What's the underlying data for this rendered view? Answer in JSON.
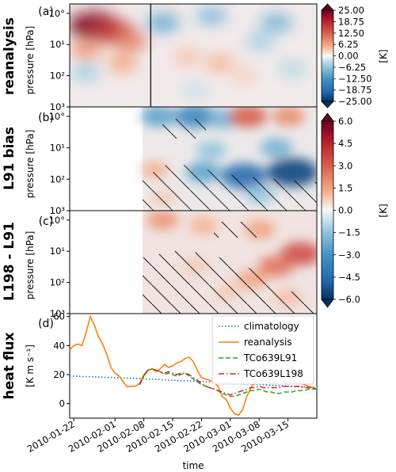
{
  "chart_data": [
    {
      "type": "heatmap",
      "panel_label": "(a)",
      "row_label": "reanalysis",
      "ylabel": "pressure [hPa]",
      "y_scale": "log",
      "ylim_hpa": [
        1000,
        0.5
      ],
      "y_ticks": [
        "10°",
        "10¹",
        "10²",
        "10³"
      ],
      "xlim": [
        "2010-01-20",
        "2010-03-22"
      ],
      "marker_line_date": "2010-02-09",
      "colorbar": {
        "unit": "[K]",
        "ticks": [
          "25.00",
          "18.75",
          "12.50",
          "6.25",
          "0.00",
          "−6.25",
          "−12.50",
          "−18.75",
          "−25.00"
        ],
        "range": [
          -25,
          25
        ],
        "colormap": "RdBu_r"
      },
      "blobs": [
        {
          "date": "2010-01-26",
          "p": 2.5,
          "value": 23
        },
        {
          "date": "2010-01-31",
          "p": 4,
          "value": 16
        },
        {
          "date": "2010-02-04",
          "p": 8,
          "value": 9
        },
        {
          "date": "2010-01-24",
          "p": 15,
          "value": 7
        },
        {
          "date": "2010-02-02",
          "p": 40,
          "value": 6
        },
        {
          "date": "2010-01-24",
          "p": 80,
          "value": -5
        },
        {
          "date": "2010-02-12",
          "p": 2,
          "value": -9
        },
        {
          "date": "2010-02-24",
          "p": 1.2,
          "value": -7
        },
        {
          "date": "2010-03-12",
          "p": 2,
          "value": -8
        },
        {
          "date": "2010-03-08",
          "p": 8,
          "value": -5
        },
        {
          "date": "2010-02-26",
          "p": 40,
          "value": 5
        },
        {
          "date": "2010-02-18",
          "p": 25,
          "value": 4
        },
        {
          "date": "2010-03-04",
          "p": 100,
          "value": 3
        },
        {
          "date": "2010-03-16",
          "p": 60,
          "value": -4
        },
        {
          "date": "2010-02-20",
          "p": 300,
          "value": -3
        }
      ]
    },
    {
      "type": "heatmap",
      "panel_label": "(b)",
      "row_label": "L91 bias",
      "ylabel": "pressure [hPa]",
      "y_scale": "log",
      "ylim_hpa": [
        1000,
        0.5
      ],
      "y_ticks": [
        "10°",
        "10¹",
        "10²",
        "10³"
      ],
      "data_start_date": "2010-02-07",
      "colorbar": {
        "unit": "[K]",
        "ticks": [
          "6.0",
          "4.5",
          "3.0",
          "1.5",
          "0.0",
          "−1.5",
          "−3.0",
          "−4.5",
          "−6.0"
        ],
        "range": [
          -6,
          6
        ],
        "colormap": "RdBu_r"
      },
      "blobs": [
        {
          "date": "2010-02-11",
          "p": 1,
          "value": -2.5
        },
        {
          "date": "2010-02-20",
          "p": 1,
          "value": -3.5
        },
        {
          "date": "2010-02-27",
          "p": 1.2,
          "value": -2
        },
        {
          "date": "2010-03-05",
          "p": 1,
          "value": 3
        },
        {
          "date": "2010-03-15",
          "p": 1,
          "value": 2
        },
        {
          "date": "2010-03-12",
          "p": 10,
          "value": -2
        },
        {
          "date": "2010-02-24",
          "p": 12,
          "value": -1.5
        },
        {
          "date": "2010-03-04",
          "p": 80,
          "value": -4.5
        },
        {
          "date": "2010-03-16",
          "p": 60,
          "value": -5.5
        },
        {
          "date": "2010-02-22",
          "p": 60,
          "value": -2.5
        },
        {
          "date": "2010-02-10",
          "p": 50,
          "value": 1.2
        },
        {
          "date": "2010-03-08",
          "p": 300,
          "value": -1.5
        },
        {
          "date": "2010-02-12",
          "p": 400,
          "value": 0.8
        }
      ]
    },
    {
      "type": "heatmap",
      "panel_label": "(c)",
      "row_label": "L198 - L91",
      "ylabel": "pressure [hPa]",
      "y_scale": "log",
      "ylim_hpa": [
        1000,
        0.5
      ],
      "y_ticks": [
        "10°",
        "10¹",
        "10²",
        "10³"
      ],
      "data_start_date": "2010-02-07",
      "colorbar": "shared with (b)",
      "blobs": [
        {
          "date": "2010-02-12",
          "p": 1,
          "value": 1.8
        },
        {
          "date": "2010-02-22",
          "p": 1.5,
          "value": 1.2
        },
        {
          "date": "2010-03-08",
          "p": 2,
          "value": 1.5
        },
        {
          "date": "2010-03-18",
          "p": 12,
          "value": 3.4
        },
        {
          "date": "2010-03-12",
          "p": 30,
          "value": 2.5
        },
        {
          "date": "2010-03-06",
          "p": 80,
          "value": 1.5
        },
        {
          "date": "2010-02-20",
          "p": 30,
          "value": 0.8
        },
        {
          "date": "2010-02-28",
          "p": 200,
          "value": 0.8
        },
        {
          "date": "2010-03-15",
          "p": 300,
          "value": 1.0
        }
      ]
    },
    {
      "type": "line",
      "panel_label": "(d)",
      "row_label": "heat flux",
      "ylabel": "[K m s⁻¹]",
      "xlabel": "time",
      "ylim": [
        -10,
        62
      ],
      "yticks": [
        0,
        20,
        40,
        60
      ],
      "xlim": [
        "2010-01-21",
        "2010-03-22"
      ],
      "xticks": [
        "2010-01-22",
        "2010-02-01",
        "2010-02-08",
        "2010-02-15",
        "2010-02-22",
        "2010-03-01",
        "2010-03-08",
        "2010-03-15"
      ],
      "legend_position": "upper right",
      "series": [
        {
          "name": "climatology",
          "color": "#1f77b4",
          "style": "dotted",
          "x": [
            "2010-01-21",
            "2010-02-05",
            "2010-02-20",
            "2010-03-05",
            "2010-03-22"
          ],
          "y": [
            19,
            17.5,
            15.5,
            13.5,
            11
          ]
        },
        {
          "name": "reanalysis",
          "color": "#ff7f0e",
          "style": "solid",
          "x": [
            "2010-01-21",
            "2010-01-22",
            "2010-01-23",
            "2010-01-24",
            "2010-01-25",
            "2010-01-26",
            "2010-01-27",
            "2010-01-28",
            "2010-01-29",
            "2010-01-30",
            "2010-01-31",
            "2010-02-01",
            "2010-02-02",
            "2010-02-03",
            "2010-02-04",
            "2010-02-05",
            "2010-02-06",
            "2010-02-07",
            "2010-02-08",
            "2010-02-09",
            "2010-02-10",
            "2010-02-11",
            "2010-02-12",
            "2010-02-13",
            "2010-02-14",
            "2010-02-15",
            "2010-02-16",
            "2010-02-17",
            "2010-02-18",
            "2010-02-19",
            "2010-02-20",
            "2010-02-21",
            "2010-02-22",
            "2010-02-23",
            "2010-02-24",
            "2010-02-25",
            "2010-02-26",
            "2010-02-27",
            "2010-02-28",
            "2010-03-01",
            "2010-03-02",
            "2010-03-03",
            "2010-03-04",
            "2010-03-05",
            "2010-03-06",
            "2010-03-07",
            "2010-03-08",
            "2010-03-09",
            "2010-03-10",
            "2010-03-11",
            "2010-03-12",
            "2010-03-13",
            "2010-03-14",
            "2010-03-15",
            "2010-03-16",
            "2010-03-17",
            "2010-03-18",
            "2010-03-19",
            "2010-03-20",
            "2010-03-21",
            "2010-03-22"
          ],
          "y": [
            37,
            40,
            41,
            40,
            49,
            60,
            54,
            46,
            41,
            34,
            25,
            21,
            19,
            15,
            11.5,
            12,
            12,
            14,
            20,
            23,
            24,
            22,
            24,
            27,
            25,
            26,
            28,
            29,
            31,
            32,
            29,
            23,
            18,
            17,
            16,
            15,
            12,
            5,
            3,
            -3,
            -7,
            -8,
            -4,
            5,
            11,
            15,
            16,
            16,
            15,
            14,
            15,
            16,
            15,
            14,
            15,
            14,
            14,
            13,
            12,
            11,
            10
          ]
        },
        {
          "name": "TCo639L91",
          "color": "#2ca02c",
          "style": "dashed",
          "x": [
            "2010-02-07",
            "2010-02-08",
            "2010-02-09",
            "2010-02-10",
            "2010-02-11",
            "2010-02-12",
            "2010-02-13",
            "2010-02-14",
            "2010-02-15",
            "2010-02-16",
            "2010-02-17",
            "2010-02-18",
            "2010-02-19",
            "2010-02-20",
            "2010-02-21",
            "2010-02-22",
            "2010-02-23",
            "2010-02-24",
            "2010-02-25",
            "2010-02-26",
            "2010-02-27",
            "2010-02-28",
            "2010-03-01",
            "2010-03-02",
            "2010-03-03",
            "2010-03-04",
            "2010-03-05",
            "2010-03-06",
            "2010-03-07",
            "2010-03-08",
            "2010-03-09",
            "2010-03-10",
            "2010-03-11",
            "2010-03-12",
            "2010-03-13",
            "2010-03-14",
            "2010-03-15",
            "2010-03-16",
            "2010-03-17",
            "2010-03-18",
            "2010-03-19",
            "2010-03-20",
            "2010-03-21",
            "2010-03-22"
          ],
          "y": [
            13,
            19,
            23,
            24,
            23,
            22,
            20,
            21,
            20,
            19,
            20,
            21,
            19,
            17,
            15,
            13,
            12,
            11,
            10,
            9,
            7,
            6,
            5,
            5,
            6,
            7,
            8,
            9,
            9,
            10,
            9,
            8,
            8,
            7,
            7,
            8,
            8,
            8,
            9,
            9,
            9,
            10,
            10,
            10
          ]
        },
        {
          "name": "TCo639L198",
          "color": "#d62728",
          "style": "dashdot",
          "x": [
            "2010-02-07",
            "2010-02-08",
            "2010-02-09",
            "2010-02-10",
            "2010-02-11",
            "2010-02-12",
            "2010-02-13",
            "2010-02-14",
            "2010-02-15",
            "2010-02-16",
            "2010-02-17",
            "2010-02-18",
            "2010-02-19",
            "2010-02-20",
            "2010-02-21",
            "2010-02-22",
            "2010-02-23",
            "2010-02-24",
            "2010-02-25",
            "2010-02-26",
            "2010-02-27",
            "2010-02-28",
            "2010-03-01",
            "2010-03-02",
            "2010-03-03",
            "2010-03-04",
            "2010-03-05",
            "2010-03-06",
            "2010-03-07",
            "2010-03-08",
            "2010-03-09",
            "2010-03-10",
            "2010-03-11",
            "2010-03-12",
            "2010-03-13",
            "2010-03-14",
            "2010-03-15",
            "2010-03-16",
            "2010-03-17",
            "2010-03-18",
            "2010-03-19",
            "2010-03-20",
            "2010-03-21",
            "2010-03-22"
          ],
          "y": [
            13,
            19,
            23,
            24,
            23,
            22,
            21,
            22,
            21,
            20,
            21,
            21,
            20,
            18,
            16,
            14,
            12,
            11,
            10,
            9,
            8,
            7,
            6,
            7,
            8,
            9,
            10,
            11,
            11,
            12,
            11,
            11,
            11,
            11,
            11,
            12,
            12,
            12,
            12,
            12,
            11,
            11,
            11,
            11
          ]
        }
      ]
    }
  ]
}
